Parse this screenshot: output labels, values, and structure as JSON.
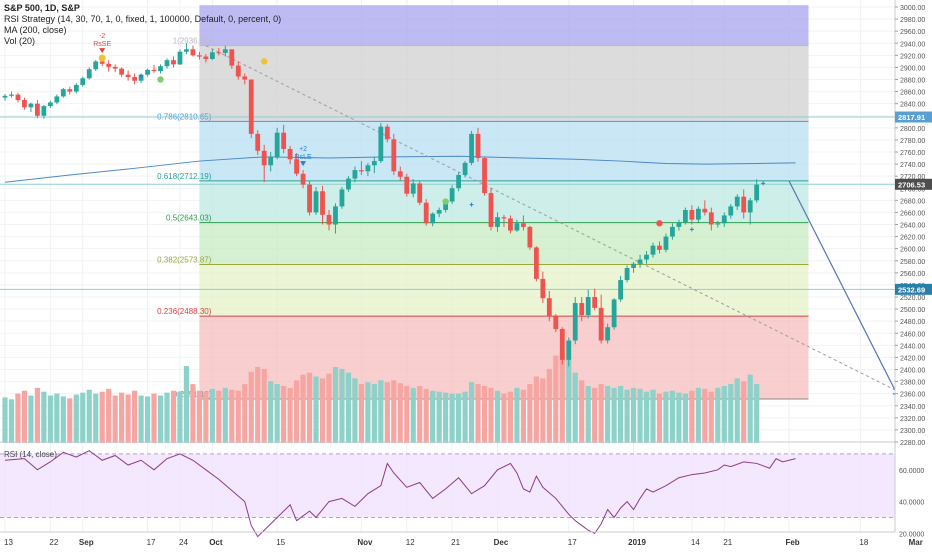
{
  "legend": {
    "symbol": "S&P 500, 1D, S&P",
    "strategy": "RSI Strategy (14, 30, 70, 1, 0, fixed, 1, 100000, Default, 0, percent, 0)",
    "ma": "MA (200, close)",
    "vol": "Vol (20)"
  },
  "rsi_pane": {
    "title": "RSI (14, close)"
  },
  "colors": {
    "up": "#26a69a",
    "down": "#ef5350",
    "ma": "#4a89c8",
    "rsi": "#8e3a8e",
    "fib_top": "#a8a4ee",
    "fib_100": "#d0d0d0",
    "fib_786": "#b7dff2",
    "fib_618": "#bde8e2",
    "fib_5": "#c7ecc2",
    "fib_382": "#e6f1c8",
    "fib_236": "#f6bebe",
    "rsi_band": "#f0e2fc",
    "hline": "#8fcfd1",
    "price_tag": "#4d4d4d"
  },
  "chart_data": {
    "type": "candlestick",
    "price_axis": {
      "ticks": [
        "3000.00",
        "2980.00",
        "2960.00",
        "2940.00",
        "2920.00",
        "2900.00",
        "2880.00",
        "2860.00",
        "2840.00",
        "2820.00",
        "2800.00",
        "2780.00",
        "2760.00",
        "2740.00",
        "2720.00",
        "2700.00",
        "2680.00",
        "2660.00",
        "2640.00",
        "2620.00",
        "2600.00",
        "2580.00",
        "2560.00",
        "2540.00",
        "2520.00",
        "2500.00",
        "2480.00",
        "2460.00",
        "2440.00",
        "2420.00",
        "2400.00",
        "2380.00",
        "2360.00",
        "2340.00",
        "2320.00",
        "2300.00",
        "2280.00"
      ],
      "ylim": [
        2270,
        3003
      ]
    },
    "rsi_axis": {
      "ticks": [
        "60.0000",
        "40.0000",
        "20.0000"
      ],
      "ylim": [
        14,
        80
      ],
      "bands": [
        30,
        70
      ]
    },
    "time_axis": [
      {
        "label": "13",
        "d": 0
      },
      {
        "label": "22",
        "d": 7
      },
      {
        "label": "Sep",
        "d": 12
      },
      {
        "label": "17",
        "d": 22
      },
      {
        "label": "24",
        "d": 27
      },
      {
        "label": "Oct",
        "d": 32
      },
      {
        "label": "15",
        "d": 42
      },
      {
        "label": "Nov",
        "d": 55
      },
      {
        "label": "12",
        "d": 62
      },
      {
        "label": "21",
        "d": 69
      },
      {
        "label": "Dec",
        "d": 76
      },
      {
        "label": "17",
        "d": 87
      },
      {
        "label": "2019",
        "d": 97
      },
      {
        "label": "14",
        "d": 106
      },
      {
        "label": "21",
        "d": 111
      },
      {
        "label": "Feb",
        "d": 121
      },
      {
        "label": "18",
        "d": 132
      },
      {
        "label": "Mar",
        "d": 140
      }
    ],
    "fib_levels": [
      {
        "ratio": "1",
        "price": 2936.07,
        "label": "1(2936.07)",
        "color": "#bbbbbb"
      },
      {
        "ratio": "0.786",
        "price": 2810.65,
        "label": "0.786(2810.65)",
        "color": "#4a9ad6"
      },
      {
        "ratio": "0.618",
        "price": 2712.19,
        "label": "0.618(2712.19)",
        "color": "#2aa198"
      },
      {
        "ratio": "0.5",
        "price": 2643.03,
        "label": "0.5(2643.03)",
        "color": "#2e9e4f"
      },
      {
        "ratio": "0.382",
        "price": 2573.87,
        "label": "0.382(2573.87)",
        "color": "#9aa53a"
      },
      {
        "ratio": "0.236",
        "price": 2488.3,
        "label": "0.236(2488.30)",
        "color": "#d64545"
      },
      {
        "ratio": "0",
        "price": 2351.1,
        "label": "0(2351.10)",
        "color": "#888888"
      }
    ],
    "price_tags": [
      {
        "price": 2817.91,
        "label": "2817.91",
        "color": "#5a9fd4"
      },
      {
        "price": 2706.53,
        "label": "2706.53",
        "color": "#4d4d4d"
      },
      {
        "price": 2532.69,
        "label": "2532.69",
        "color": "#2a7fa8"
      }
    ],
    "signals": [
      {
        "d": 15,
        "price": 2932,
        "text": "RsSE",
        "sub": "-2",
        "color": "#e0443e",
        "dot": "#f2c12e"
      },
      {
        "d": 46,
        "price": 2745,
        "text": "RsLE",
        "sub": "+2",
        "color": "#2a7fd4",
        "dot": ""
      }
    ],
    "candles": [
      [
        2850,
        2856,
        2845,
        2853,
        48
      ],
      [
        2853,
        2860,
        2850,
        2855,
        46
      ],
      [
        2855,
        2858,
        2842,
        2846,
        52
      ],
      [
        2846,
        2850,
        2830,
        2834,
        55
      ],
      [
        2834,
        2842,
        2826,
        2840,
        50
      ],
      [
        2840,
        2846,
        2816,
        2820,
        58
      ],
      [
        2820,
        2838,
        2815,
        2836,
        54
      ],
      [
        2836,
        2845,
        2833,
        2842,
        50
      ],
      [
        2842,
        2855,
        2839,
        2852,
        52
      ],
      [
        2852,
        2866,
        2850,
        2864,
        49
      ],
      [
        2864,
        2868,
        2855,
        2860,
        47
      ],
      [
        2860,
        2874,
        2857,
        2871,
        51
      ],
      [
        2871,
        2885,
        2868,
        2882,
        53
      ],
      [
        2882,
        2900,
        2880,
        2897,
        56
      ],
      [
        2897,
        2912,
        2894,
        2910,
        52
      ],
      [
        2910,
        2918,
        2902,
        2906,
        54
      ],
      [
        2906,
        2912,
        2893,
        2901,
        57
      ],
      [
        2901,
        2905,
        2892,
        2898,
        50
      ],
      [
        2898,
        2900,
        2884,
        2888,
        53
      ],
      [
        2888,
        2895,
        2878,
        2884,
        51
      ],
      [
        2884,
        2890,
        2872,
        2878,
        55
      ],
      [
        2878,
        2890,
        2874,
        2888,
        50
      ],
      [
        2888,
        2898,
        2885,
        2896,
        49
      ],
      [
        2896,
        2904,
        2891,
        2894,
        52
      ],
      [
        2894,
        2905,
        2890,
        2902,
        50
      ],
      [
        2902,
        2915,
        2898,
        2912,
        53
      ],
      [
        2912,
        2918,
        2900,
        2905,
        55
      ],
      [
        2905,
        2930,
        2904,
        2926,
        54
      ],
      [
        2926,
        2940,
        2922,
        2930,
        81
      ],
      [
        2930,
        2936,
        2918,
        2920,
        62
      ],
      [
        2920,
        2926,
        2913,
        2918,
        55
      ],
      [
        2918,
        2922,
        2908,
        2914,
        54
      ],
      [
        2914,
        2930,
        2912,
        2925,
        57
      ],
      [
        2925,
        2932,
        2920,
        2924,
        55
      ],
      [
        2924,
        2936,
        2918,
        2930,
        58
      ],
      [
        2930,
        2930,
        2898,
        2903,
        56
      ],
      [
        2903,
        2910,
        2880,
        2885,
        55
      ],
      [
        2885,
        2890,
        2872,
        2880,
        62
      ],
      [
        2880,
        2880,
        2783,
        2790,
        75
      ],
      [
        2790,
        2796,
        2755,
        2762,
        80
      ],
      [
        2762,
        2772,
        2710,
        2738,
        78
      ],
      [
        2738,
        2760,
        2728,
        2752,
        65
      ],
      [
        2752,
        2800,
        2748,
        2792,
        62
      ],
      [
        2792,
        2805,
        2758,
        2765,
        60
      ],
      [
        2765,
        2770,
        2740,
        2748,
        58
      ],
      [
        2748,
        2758,
        2720,
        2724,
        66
      ],
      [
        2724,
        2730,
        2700,
        2706,
        72
      ],
      [
        2706,
        2712,
        2655,
        2660,
        74
      ],
      [
        2660,
        2702,
        2656,
        2695,
        70
      ],
      [
        2695,
        2704,
        2640,
        2656,
        68
      ],
      [
        2656,
        2664,
        2630,
        2640,
        73
      ],
      [
        2640,
        2675,
        2625,
        2670,
        80
      ],
      [
        2670,
        2702,
        2666,
        2698,
        78
      ],
      [
        2698,
        2720,
        2694,
        2716,
        74
      ],
      [
        2716,
        2736,
        2710,
        2730,
        68
      ],
      [
        2730,
        2745,
        2722,
        2728,
        62
      ],
      [
        2728,
        2742,
        2720,
        2738,
        64
      ],
      [
        2738,
        2752,
        2725,
        2745,
        62
      ],
      [
        2745,
        2808,
        2742,
        2802,
        66
      ],
      [
        2802,
        2806,
        2776,
        2781,
        64
      ],
      [
        2781,
        2790,
        2722,
        2728,
        66
      ],
      [
        2728,
        2736,
        2713,
        2719,
        63
      ],
      [
        2719,
        2724,
        2686,
        2691,
        60
      ],
      [
        2691,
        2715,
        2685,
        2708,
        58
      ],
      [
        2708,
        2712,
        2672,
        2676,
        60
      ],
      [
        2676,
        2682,
        2638,
        2642,
        57
      ],
      [
        2642,
        2660,
        2637,
        2658,
        55
      ],
      [
        2658,
        2668,
        2652,
        2664,
        54
      ],
      [
        2664,
        2682,
        2660,
        2678,
        53
      ],
      [
        2678,
        2705,
        2674,
        2700,
        52
      ],
      [
        2700,
        2726,
        2695,
        2722,
        52
      ],
      [
        2722,
        2745,
        2718,
        2742,
        54
      ],
      [
        2742,
        2795,
        2738,
        2790,
        64
      ],
      [
        2790,
        2800,
        2744,
        2750,
        62
      ],
      [
        2750,
        2752,
        2688,
        2692,
        60
      ],
      [
        2692,
        2700,
        2630,
        2636,
        58
      ],
      [
        2636,
        2660,
        2628,
        2652,
        55
      ],
      [
        2652,
        2656,
        2636,
        2650,
        52
      ],
      [
        2650,
        2655,
        2625,
        2630,
        54
      ],
      [
        2630,
        2648,
        2628,
        2642,
        58
      ],
      [
        2642,
        2655,
        2630,
        2636,
        56
      ],
      [
        2636,
        2638,
        2598,
        2602,
        62
      ],
      [
        2602,
        2604,
        2546,
        2550,
        70
      ],
      [
        2550,
        2562,
        2510,
        2518,
        68
      ],
      [
        2518,
        2530,
        2480,
        2488,
        78
      ],
      [
        2488,
        2492,
        2462,
        2467,
        92
      ],
      [
        2467,
        2470,
        2408,
        2416,
        95
      ],
      [
        2416,
        2453,
        2405,
        2448,
        88
      ],
      [
        2448,
        2520,
        2442,
        2510,
        74
      ],
      [
        2510,
        2520,
        2480,
        2490,
        66
      ],
      [
        2490,
        2532,
        2484,
        2520,
        60
      ],
      [
        2520,
        2534,
        2498,
        2502,
        58
      ],
      [
        2502,
        2524,
        2443,
        2448,
        62
      ],
      [
        2448,
        2476,
        2443,
        2470,
        60
      ],
      [
        2470,
        2518,
        2466,
        2516,
        58
      ],
      [
        2516,
        2555,
        2512,
        2548,
        60
      ],
      [
        2548,
        2572,
        2544,
        2568,
        56
      ],
      [
        2568,
        2578,
        2560,
        2575,
        58
      ],
      [
        2575,
        2590,
        2568,
        2582,
        57
      ],
      [
        2582,
        2596,
        2575,
        2590,
        54
      ],
      [
        2590,
        2610,
        2585,
        2605,
        56
      ],
      [
        2605,
        2612,
        2592,
        2598,
        52
      ],
      [
        2598,
        2625,
        2594,
        2620,
        54
      ],
      [
        2620,
        2642,
        2615,
        2636,
        55
      ],
      [
        2636,
        2648,
        2630,
        2644,
        53
      ],
      [
        2644,
        2668,
        2640,
        2664,
        52
      ],
      [
        2664,
        2672,
        2640,
        2648,
        55
      ],
      [
        2648,
        2670,
        2644,
        2666,
        58
      ],
      [
        2666,
        2680,
        2655,
        2660,
        57
      ],
      [
        2660,
        2668,
        2630,
        2640,
        54
      ],
      [
        2640,
        2646,
        2635,
        2642,
        58
      ],
      [
        2642,
        2660,
        2636,
        2655,
        60
      ],
      [
        2655,
        2674,
        2650,
        2670,
        62
      ],
      [
        2670,
        2690,
        2664,
        2686,
        68
      ],
      [
        2686,
        2698,
        2650,
        2660,
        65
      ],
      [
        2660,
        2684,
        2640,
        2680,
        72
      ],
      [
        2680,
        2715,
        2676,
        2706,
        62
      ]
    ],
    "ma200": [
      [
        0,
        2710
      ],
      [
        10,
        2722
      ],
      [
        20,
        2733
      ],
      [
        30,
        2745
      ],
      [
        40,
        2752
      ],
      [
        50,
        2750
      ],
      [
        60,
        2752
      ],
      [
        70,
        2753
      ],
      [
        80,
        2750
      ],
      [
        88,
        2748
      ],
      [
        95,
        2745
      ],
      [
        102,
        2741
      ],
      [
        108,
        2740
      ],
      [
        116,
        2741
      ],
      [
        122,
        2742
      ]
    ],
    "rsi": [
      [
        0,
        66
      ],
      [
        3,
        67
      ],
      [
        5,
        60
      ],
      [
        7,
        65
      ],
      [
        9,
        71
      ],
      [
        11,
        68
      ],
      [
        13,
        72
      ],
      [
        15,
        66
      ],
      [
        17,
        69
      ],
      [
        19,
        63
      ],
      [
        21,
        66
      ],
      [
        23,
        60
      ],
      [
        25,
        67
      ],
      [
        27,
        70
      ],
      [
        29,
        66
      ],
      [
        31,
        60
      ],
      [
        33,
        54
      ],
      [
        35,
        47
      ],
      [
        37,
        40
      ],
      [
        38,
        25
      ],
      [
        39,
        18
      ],
      [
        40,
        22
      ],
      [
        42,
        30
      ],
      [
        44,
        38
      ],
      [
        45,
        28
      ],
      [
        47,
        34
      ],
      [
        48,
        30
      ],
      [
        50,
        40
      ],
      [
        52,
        42
      ],
      [
        54,
        37
      ],
      [
        56,
        45
      ],
      [
        58,
        50
      ],
      [
        59,
        64
      ],
      [
        60,
        58
      ],
      [
        62,
        49
      ],
      [
        64,
        52
      ],
      [
        66,
        42
      ],
      [
        68,
        48
      ],
      [
        70,
        55
      ],
      [
        72,
        45
      ],
      [
        74,
        50
      ],
      [
        76,
        60
      ],
      [
        78,
        64
      ],
      [
        79,
        58
      ],
      [
        80,
        48
      ],
      [
        81,
        46
      ],
      [
        82,
        56
      ],
      [
        83,
        49
      ],
      [
        85,
        42
      ],
      [
        87,
        32
      ],
      [
        88,
        28
      ],
      [
        89,
        25
      ],
      [
        90,
        22
      ],
      [
        91,
        20
      ],
      [
        92,
        26
      ],
      [
        93,
        35
      ],
      [
        94,
        30
      ],
      [
        95,
        36
      ],
      [
        96,
        40
      ],
      [
        97,
        35
      ],
      [
        98,
        42
      ],
      [
        99,
        48
      ],
      [
        100,
        46
      ],
      [
        102,
        50
      ],
      [
        104,
        55
      ],
      [
        106,
        57
      ],
      [
        108,
        58
      ],
      [
        110,
        60
      ],
      [
        111,
        63
      ],
      [
        112,
        62
      ],
      [
        114,
        65
      ],
      [
        116,
        64
      ],
      [
        118,
        61
      ],
      [
        119,
        67
      ],
      [
        120,
        65
      ],
      [
        122,
        67
      ]
    ],
    "projection_arrow": {
      "from": {
        "d": 121,
        "price": 2712
      },
      "to": {
        "d": 138,
        "price": 2352
      }
    },
    "trendline": {
      "from": {
        "d": 31,
        "price": 2936
      },
      "to": {
        "d": 140,
        "price": 2352
      }
    },
    "crosses": [
      {
        "d": 106,
        "price": 2632
      },
      {
        "d": 72,
        "price": 2673
      },
      {
        "d": 21,
        "price": 2886
      },
      {
        "d": 117,
        "price": 2708
      }
    ]
  }
}
